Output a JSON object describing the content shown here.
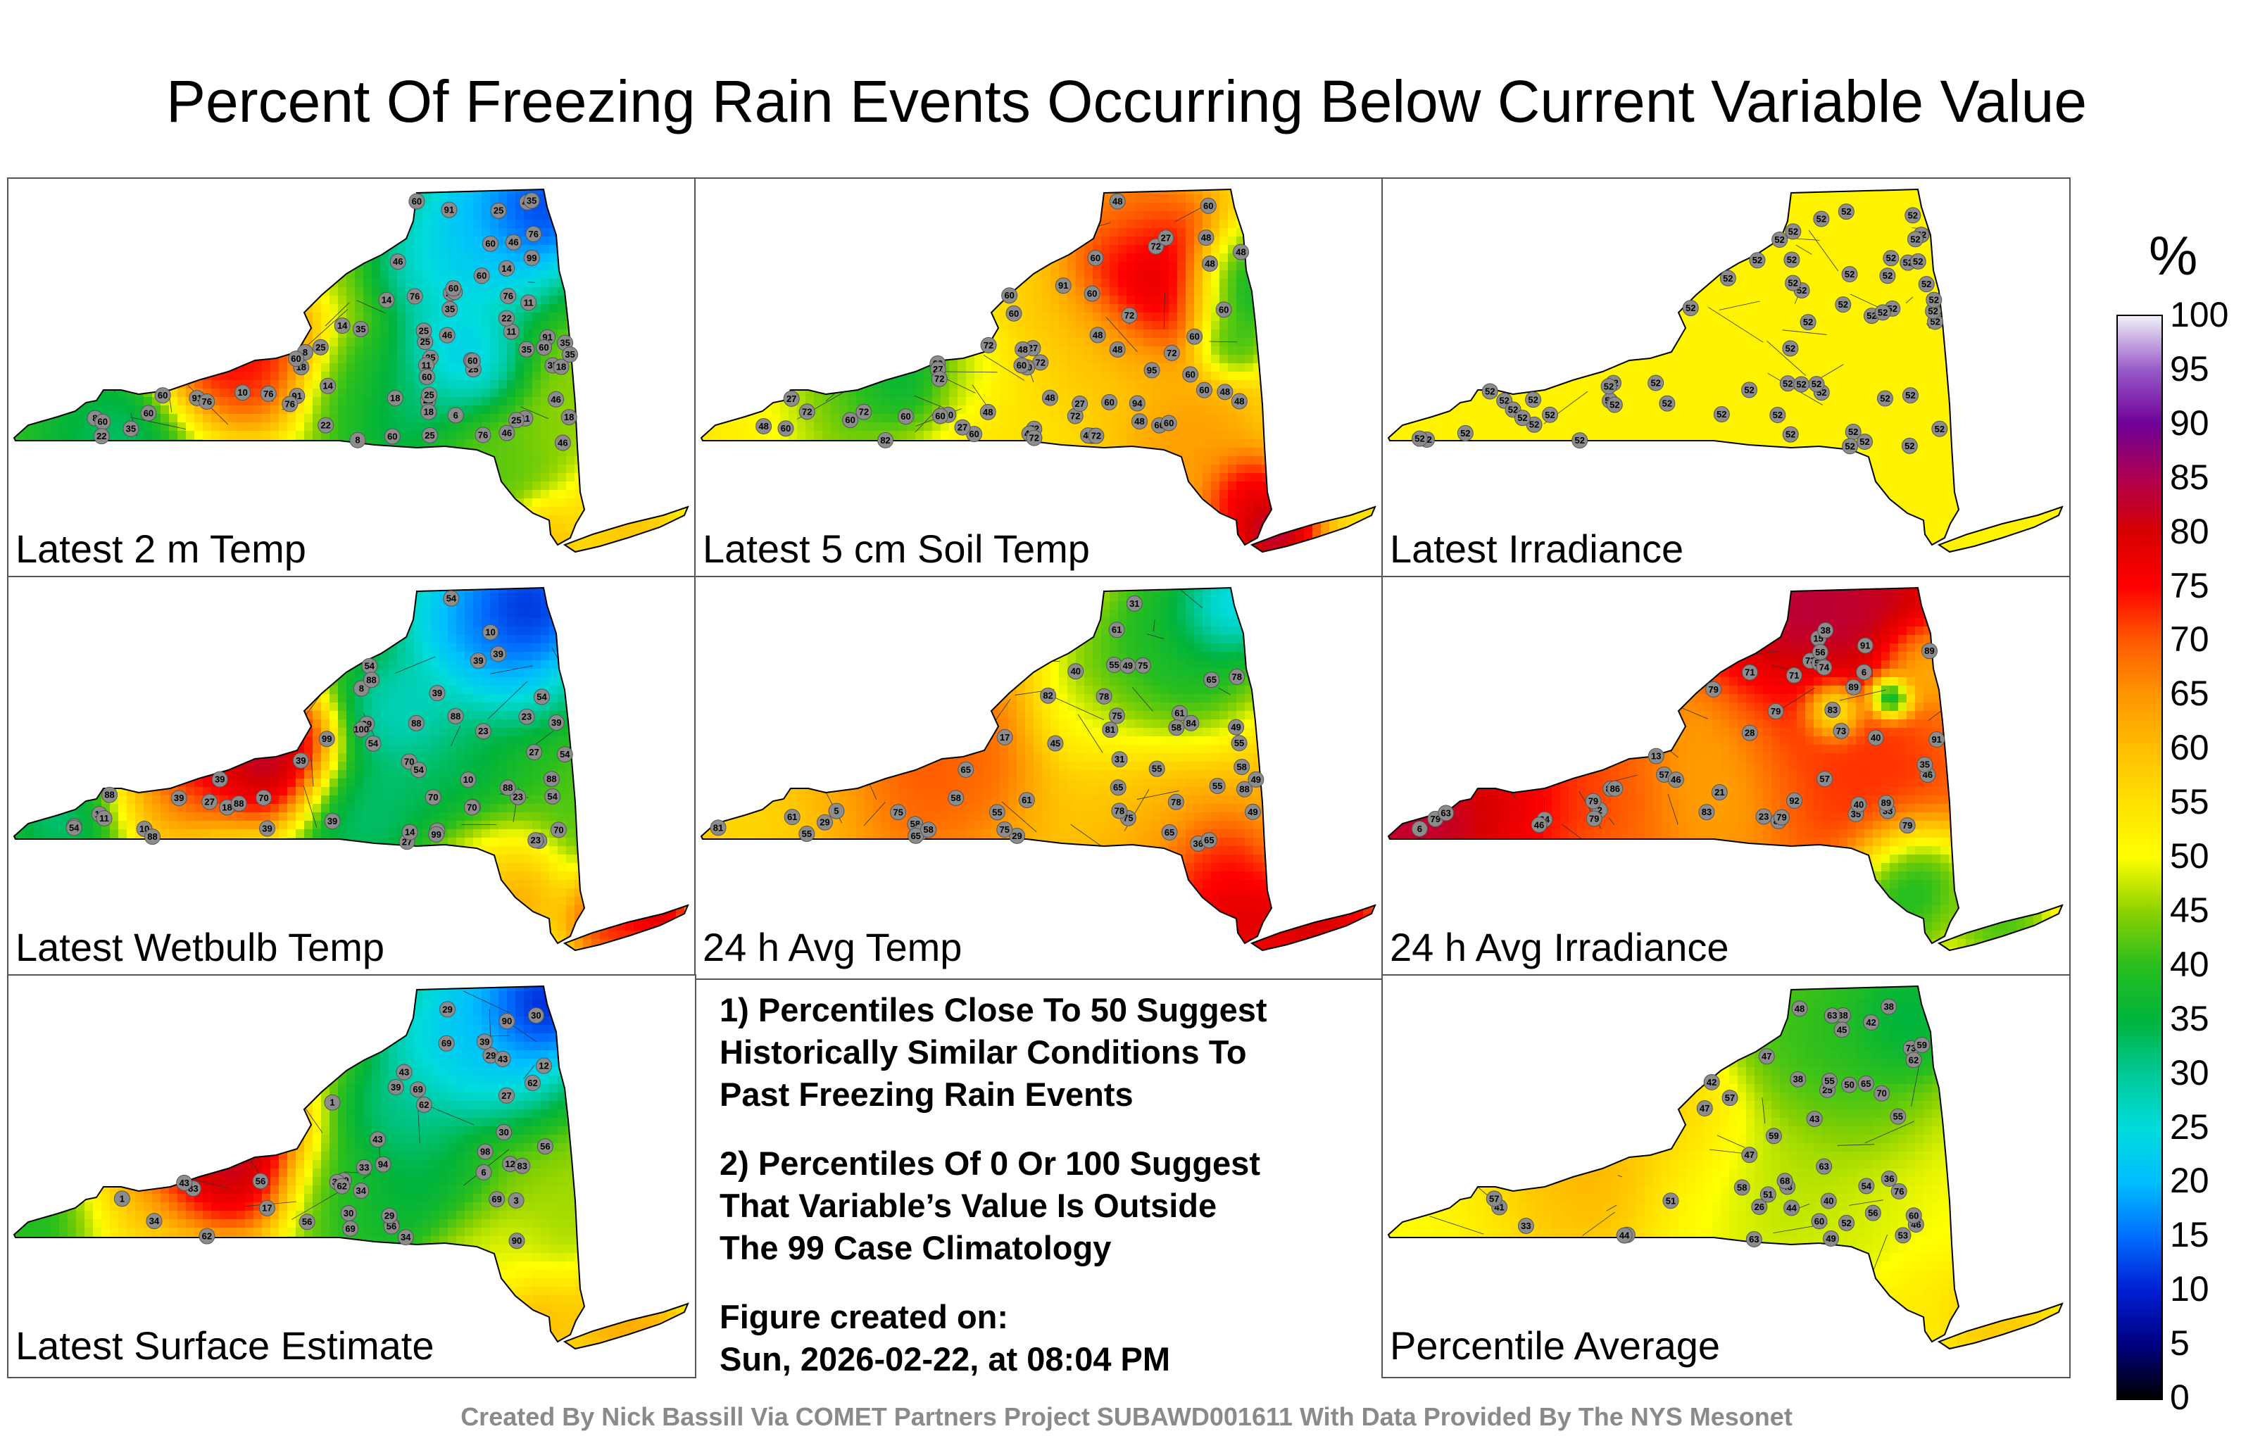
{
  "title": "Percent Of Freezing Rain Events Occurring Below Current Variable Value",
  "panels": [
    {
      "label": "Latest 2 m Temp",
      "scheme": "temp2m",
      "values": [
        25,
        11,
        8,
        6,
        8,
        11,
        10,
        11,
        8,
        14,
        25,
        35,
        25,
        35,
        22,
        18,
        22,
        25,
        11,
        91,
        76,
        60,
        46,
        76,
        22,
        14,
        35,
        46,
        25,
        60,
        76,
        46,
        46,
        91,
        76,
        60,
        35,
        60,
        76,
        91,
        76,
        22,
        60,
        18,
        76,
        14,
        25,
        18,
        35,
        18,
        14,
        25,
        18,
        76,
        35,
        46,
        99,
        60,
        46,
        91,
        25,
        25,
        35,
        22,
        46,
        60,
        25,
        35,
        60,
        60,
        60,
        60,
        60
      ]
    },
    {
      "label": "Latest 5 cm Soil Temp",
      "scheme": "soil",
      "values": [
        72,
        60,
        60,
        72,
        27,
        72,
        60,
        95,
        48,
        91,
        82,
        48,
        27,
        60,
        72,
        48,
        60,
        72,
        72,
        60,
        48,
        48,
        72,
        60,
        48,
        72,
        48,
        60,
        72,
        60,
        48,
        27,
        60,
        27,
        48,
        60,
        72,
        48,
        60,
        60,
        27,
        48,
        60,
        72,
        60,
        60,
        48,
        27,
        72,
        48,
        60,
        60,
        60,
        94,
        48,
        60,
        72,
        48,
        60
      ]
    },
    {
      "label": "Latest Irradiance",
      "scheme": "flat",
      "values": [
        52,
        52,
        52,
        52,
        52,
        52,
        52,
        52,
        52,
        52,
        52,
        52,
        52,
        52,
        52,
        52,
        52,
        52,
        52,
        52,
        52,
        52,
        52,
        52,
        52,
        52,
        52,
        52,
        52,
        52,
        52,
        52,
        52,
        52,
        52,
        52,
        52,
        52,
        52,
        52,
        52,
        52,
        52,
        52,
        52,
        52,
        52,
        52,
        52,
        52,
        52,
        52,
        52,
        52,
        52,
        52,
        52,
        52,
        52,
        52
      ]
    },
    {
      "label": "Latest Wetbulb Temp",
      "scheme": "wetbulb",
      "values": [
        27,
        10,
        8,
        6,
        10,
        11,
        39,
        39,
        23,
        39,
        11,
        88,
        99,
        54,
        18,
        23,
        54,
        88,
        54,
        70,
        54,
        100,
        88,
        88,
        39,
        54,
        39,
        27,
        14,
        39,
        18,
        39,
        23,
        88,
        27,
        70,
        54,
        39,
        99,
        39,
        88,
        23,
        10,
        54,
        70,
        39,
        39,
        54,
        70,
        88,
        70,
        54,
        88
      ]
    },
    {
      "label": "24 h Avg Temp",
      "scheme": "avgtemp",
      "values": [
        29,
        29,
        17,
        5,
        31,
        31,
        36,
        49,
        55,
        40,
        45,
        75,
        65,
        61,
        78,
        75,
        58,
        65,
        61,
        75,
        65,
        58,
        55,
        65,
        78,
        49,
        55,
        75,
        58,
        61,
        65,
        49,
        58,
        55,
        61,
        65,
        58,
        78,
        81,
        75,
        78,
        82,
        81,
        88,
        84,
        65,
        55,
        49,
        55
      ]
    },
    {
      "label": "24 h Avg Irradiance",
      "scheme": "avgirr",
      "values": [
        92,
        91,
        91,
        89,
        79,
        57,
        86,
        89,
        6,
        46,
        2,
        79,
        89,
        79,
        83,
        73,
        71,
        79,
        35,
        56,
        64,
        63,
        57,
        74,
        79,
        46,
        21,
        79,
        15,
        6,
        71,
        46,
        56,
        38,
        40,
        28,
        23,
        13,
        35,
        33,
        40,
        86,
        89,
        83,
        73,
        79
      ]
    },
    {
      "label": "Latest Surface Estimate",
      "scheme": "surface",
      "values": [
        30,
        12,
        6,
        1,
        3,
        17,
        12,
        1,
        34,
        30,
        29,
        27,
        83,
        69,
        90,
        62,
        94,
        83,
        90,
        69,
        56,
        43,
        33,
        30,
        43,
        43,
        56,
        62,
        69,
        39,
        29,
        56,
        34,
        98,
        56,
        29,
        33,
        43,
        39,
        62,
        62,
        69,
        69,
        62,
        34
      ]
    },
    null,
    {
      "label": "Percentile Average",
      "scheme": "average",
      "values": [
        47,
        38,
        38,
        26,
        25,
        33,
        48,
        44,
        41,
        42,
        47,
        43,
        76,
        63,
        57,
        70,
        65,
        73,
        71,
        68,
        63,
        60,
        51,
        56,
        49,
        45,
        42,
        38,
        55,
        52,
        40,
        46,
        43,
        51,
        57,
        36,
        60,
        59,
        58,
        53,
        50,
        54,
        44,
        47,
        55,
        59,
        63,
        62
      ]
    }
  ],
  "notes": {
    "note1": [
      "1) Percentiles Close To 50 Suggest",
      "Historically Similar Conditions To",
      "Past Freezing Rain Events"
    ],
    "note2": [
      "2) Percentiles Of 0 Or 100 Suggest",
      "That Variable’s Value Is Outside",
      "The 99 Case Climatology"
    ],
    "created_label": "Figure created on:",
    "created_date": "Sun, 2026-02-22, at 08:04 PM"
  },
  "colorbar": {
    "unit": "%",
    "ticks": [
      "100",
      "95",
      "90",
      "85",
      "80",
      "75",
      "70",
      "65",
      "60",
      "55",
      "50",
      "45",
      "40",
      "35",
      "30",
      "25",
      "20",
      "15",
      "10",
      "5",
      "0"
    ]
  },
  "footer": "Created By Nick Bassill Via COMET Partners Project SUBAWD001611 With Data Provided By The NYS Mesonet"
}
